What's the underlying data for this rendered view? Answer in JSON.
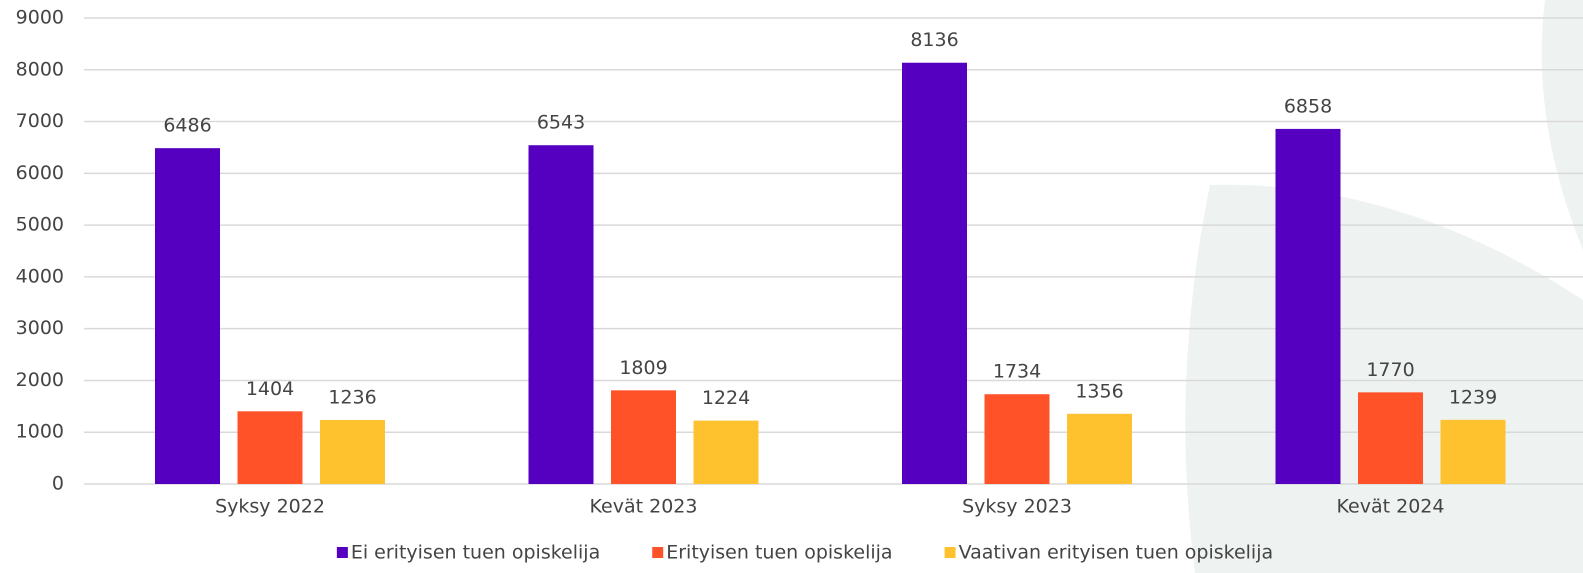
{
  "chart_data": {
    "type": "bar",
    "categories": [
      "Syksy 2022",
      "Kevät 2023",
      "Syksy 2023",
      "Kevät 2024"
    ],
    "series": [
      {
        "name": "Ei erityisen tuen opiskelija",
        "color": "#5500c0",
        "values": [
          6486,
          6543,
          8136,
          6858
        ]
      },
      {
        "name": "Erityisen tuen opiskelija",
        "color": "#ff5229",
        "values": [
          1404,
          1809,
          1734,
          1770
        ]
      },
      {
        "name": "Vaativan erityisen tuen opiskelija",
        "color": "#fdc22d",
        "values": [
          1236,
          1224,
          1356,
          1239
        ]
      }
    ],
    "ylim": [
      0,
      9000
    ],
    "yticks": [
      0,
      1000,
      2000,
      3000,
      4000,
      5000,
      6000,
      7000,
      8000,
      9000
    ],
    "grid": true,
    "legend": "bottom"
  }
}
